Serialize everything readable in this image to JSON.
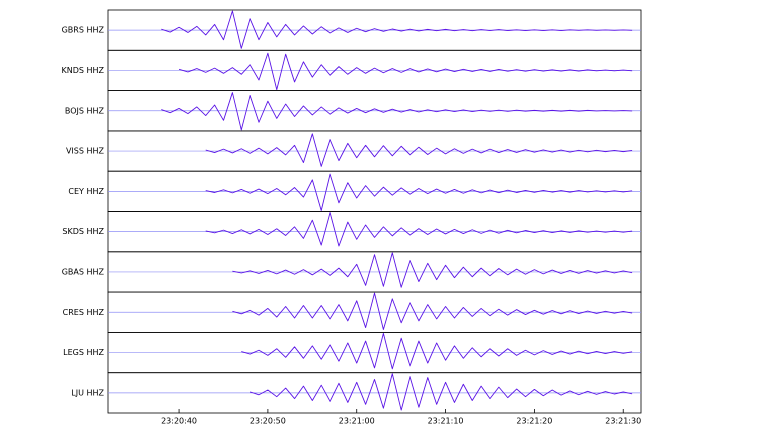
{
  "chart_data": {
    "type": "line",
    "x": [
      84032,
      84033,
      84034,
      84035,
      84036,
      84037,
      84038,
      84039,
      84040,
      84041,
      84042,
      84043,
      84044,
      84045,
      84046,
      84047,
      84048,
      84049,
      84050,
      84051,
      84052,
      84053,
      84054,
      84055,
      84056,
      84057,
      84058,
      84059,
      84060,
      84061,
      84062,
      84063,
      84064,
      84065,
      84066,
      84067,
      84068,
      84069,
      84070,
      84071,
      84072,
      84073,
      84074,
      84075,
      84076,
      84077,
      84078,
      84079,
      84080,
      84081,
      84082,
      84083,
      84084,
      84085,
      84086,
      84087,
      84088,
      84089,
      84090,
      84091
    ],
    "xlim": [
      84032,
      84092
    ],
    "xticks": [
      {
        "value": 84040,
        "label": "23:20:40"
      },
      {
        "value": 84050,
        "label": "23:20:50"
      },
      {
        "value": 84060,
        "label": "23:21:00"
      },
      {
        "value": 84070,
        "label": "23:21:10"
      },
      {
        "value": 84080,
        "label": "23:21:20"
      },
      {
        "value": 84090,
        "label": "23:21:30"
      }
    ],
    "ylim": [
      -1,
      1
    ],
    "series": [
      {
        "name": "GBRS HHZ",
        "color": "#5a14e6",
        "values": [
          null,
          null,
          null,
          null,
          null,
          null,
          0.05,
          -0.1,
          0.15,
          -0.12,
          0.2,
          -0.25,
          0.3,
          -0.5,
          1,
          -0.95,
          0.6,
          -0.5,
          0.4,
          -0.35,
          0.3,
          -0.25,
          0.22,
          -0.2,
          0.18,
          -0.15,
          0.12,
          -0.12,
          0.1,
          -0.08,
          0.08,
          -0.06,
          0.06,
          -0.05,
          0.05,
          -0.04,
          0.04,
          -0.03,
          0.04,
          -0.03,
          0.03,
          -0.03,
          0.03,
          -0.02,
          0.03,
          -0.02,
          0.02,
          -0.02,
          0.02,
          -0.02,
          0.02,
          -0.02,
          0.02,
          -0.01,
          0.02,
          -0.01,
          0.01,
          -0.01,
          0.01,
          -0.01
        ]
      },
      {
        "name": "KNDS HHZ",
        "color": "#5a14e6",
        "values": [
          null,
          null,
          null,
          null,
          null,
          null,
          null,
          null,
          0.06,
          -0.08,
          0.1,
          -0.1,
          0.12,
          -0.15,
          0.15,
          -0.2,
          0.3,
          -0.5,
          0.9,
          -1,
          0.85,
          -0.6,
          0.45,
          -0.35,
          0.3,
          -0.25,
          0.2,
          -0.2,
          0.15,
          -0.15,
          0.12,
          -0.12,
          0.1,
          -0.1,
          0.1,
          -0.08,
          0.08,
          -0.07,
          0.07,
          -0.06,
          0.06,
          -0.05,
          0.05,
          -0.05,
          0.05,
          -0.04,
          0.04,
          -0.04,
          0.04,
          -0.03,
          0.03,
          -0.03,
          0.03,
          -0.03,
          0.03,
          -0.02,
          0.02,
          -0.02,
          0.02,
          -0.02
        ]
      },
      {
        "name": "BOJS HHZ",
        "color": "#5a14e6",
        "values": [
          null,
          null,
          null,
          null,
          null,
          null,
          0.06,
          -0.1,
          0.12,
          -0.15,
          0.2,
          -0.25,
          0.3,
          -0.5,
          0.95,
          -1,
          0.8,
          -0.6,
          0.5,
          -0.4,
          0.35,
          -0.3,
          0.25,
          -0.22,
          0.2,
          -0.18,
          0.15,
          -0.12,
          0.12,
          -0.1,
          0.1,
          -0.08,
          0.08,
          -0.07,
          0.06,
          -0.06,
          0.05,
          -0.05,
          0.05,
          -0.04,
          0.04,
          -0.04,
          0.03,
          -0.03,
          0.03,
          -0.03,
          0.03,
          -0.02,
          0.02,
          -0.02,
          0.02,
          -0.02,
          0.02,
          -0.02,
          0.02,
          -0.01,
          0.01,
          -0.01,
          0.01,
          -0.01
        ]
      },
      {
        "name": "VISS HHZ",
        "color": "#5a14e6",
        "values": [
          null,
          null,
          null,
          null,
          null,
          null,
          null,
          null,
          null,
          null,
          null,
          0.05,
          -0.08,
          0.1,
          -0.1,
          0.12,
          -0.12,
          0.15,
          -0.15,
          0.18,
          -0.2,
          0.3,
          -0.6,
          0.9,
          -0.8,
          0.6,
          -0.5,
          0.4,
          -0.35,
          0.3,
          -0.3,
          0.28,
          -0.25,
          0.25,
          -0.2,
          0.2,
          -0.18,
          0.15,
          -0.15,
          0.12,
          -0.12,
          0.1,
          -0.1,
          0.1,
          -0.08,
          0.08,
          -0.07,
          0.07,
          -0.06,
          0.06,
          -0.05,
          0.05,
          -0.05,
          0.04,
          -0.04,
          0.04,
          -0.03,
          0.03,
          -0.03,
          0.03
        ]
      },
      {
        "name": "CEY HHZ",
        "color": "#5a14e6",
        "values": [
          null,
          null,
          null,
          null,
          null,
          null,
          null,
          null,
          null,
          null,
          null,
          0.04,
          -0.06,
          0.08,
          -0.08,
          0.1,
          -0.1,
          0.12,
          -0.12,
          0.15,
          -0.18,
          0.2,
          -0.3,
          0.6,
          -1,
          0.9,
          -0.6,
          0.45,
          -0.35,
          0.3,
          -0.25,
          0.22,
          -0.2,
          0.18,
          -0.15,
          0.15,
          -0.12,
          0.12,
          -0.1,
          0.1,
          -0.1,
          0.08,
          -0.08,
          0.07,
          -0.07,
          0.06,
          -0.06,
          0.05,
          -0.05,
          0.05,
          -0.04,
          0.04,
          -0.04,
          0.04,
          -0.03,
          0.03,
          -0.03,
          0.03,
          -0.03,
          0.03
        ]
      },
      {
        "name": "SKDS HHZ",
        "color": "#5a14e6",
        "values": [
          null,
          null,
          null,
          null,
          null,
          null,
          null,
          null,
          null,
          null,
          null,
          0.04,
          -0.06,
          0.08,
          -0.1,
          0.1,
          -0.12,
          0.12,
          -0.15,
          0.15,
          -0.2,
          0.25,
          -0.35,
          0.6,
          -0.7,
          1,
          -0.75,
          0.5,
          -0.4,
          0.35,
          -0.3,
          0.25,
          -0.22,
          0.2,
          -0.18,
          0.16,
          -0.15,
          0.14,
          -0.12,
          0.12,
          -0.1,
          0.1,
          -0.09,
          0.08,
          -0.08,
          0.07,
          -0.06,
          0.06,
          -0.05,
          0.05,
          -0.05,
          0.04,
          -0.04,
          0.04,
          -0.03,
          0.03,
          -0.03,
          0.03,
          -0.03,
          0.03
        ]
      },
      {
        "name": "GBAS HHZ",
        "color": "#5a14e6",
        "values": [
          null,
          null,
          null,
          null,
          null,
          null,
          null,
          null,
          null,
          null,
          null,
          null,
          null,
          null,
          0.04,
          -0.05,
          0.06,
          -0.08,
          0.08,
          -0.1,
          0.1,
          -0.12,
          0.12,
          -0.15,
          0.15,
          -0.18,
          0.2,
          -0.25,
          0.4,
          -0.7,
          0.9,
          -0.75,
          1,
          -0.8,
          0.6,
          -0.5,
          0.45,
          -0.4,
          0.35,
          -0.3,
          0.25,
          -0.25,
          0.2,
          -0.2,
          0.18,
          -0.15,
          0.15,
          -0.12,
          0.12,
          -0.1,
          0.1,
          -0.08,
          0.08,
          -0.07,
          0.07,
          -0.06,
          0.06,
          -0.05,
          0.05,
          -0.04
        ]
      },
      {
        "name": "CRES HHZ",
        "color": "#5a14e6",
        "values": [
          null,
          null,
          null,
          null,
          null,
          null,
          null,
          null,
          null,
          null,
          null,
          null,
          null,
          null,
          0.05,
          -0.08,
          0.1,
          -0.15,
          0.2,
          -0.25,
          0.3,
          -0.3,
          0.35,
          -0.3,
          0.35,
          -0.35,
          0.4,
          -0.45,
          0.6,
          -0.8,
          1,
          -0.9,
          0.7,
          -0.55,
          0.5,
          -0.45,
          0.4,
          -0.35,
          0.3,
          -0.3,
          0.25,
          -0.22,
          0.2,
          -0.18,
          0.16,
          -0.15,
          0.14,
          -0.12,
          0.1,
          -0.1,
          0.09,
          -0.08,
          0.08,
          -0.07,
          0.06,
          -0.06,
          0.05,
          -0.05,
          0.04,
          -0.04
        ]
      },
      {
        "name": "LEGS HHZ",
        "color": "#5a14e6",
        "values": [
          null,
          null,
          null,
          null,
          null,
          null,
          null,
          null,
          null,
          null,
          null,
          null,
          null,
          null,
          null,
          0.05,
          -0.08,
          0.12,
          -0.15,
          0.2,
          -0.25,
          0.3,
          -0.3,
          0.35,
          -0.35,
          0.4,
          -0.45,
          0.5,
          -0.55,
          0.6,
          -0.8,
          1,
          -0.85,
          0.75,
          -0.7,
          0.6,
          -0.55,
          0.5,
          -0.4,
          0.35,
          -0.3,
          0.25,
          -0.22,
          0.2,
          -0.18,
          0.2,
          -0.15,
          0.12,
          -0.12,
          0.1,
          -0.1,
          0.08,
          -0.08,
          0.07,
          -0.06,
          0.06,
          -0.05,
          0.05,
          -0.04,
          0.04
        ]
      },
      {
        "name": "LJU HHZ",
        "color": "#5a14e6",
        "values": [
          null,
          null,
          null,
          null,
          null,
          null,
          null,
          null,
          null,
          null,
          null,
          null,
          null,
          null,
          null,
          null,
          0.05,
          -0.1,
          0.15,
          -0.2,
          0.25,
          -0.3,
          0.35,
          -0.4,
          0.4,
          -0.45,
          0.5,
          -0.5,
          0.55,
          -0.6,
          0.7,
          -0.8,
          1,
          -0.9,
          0.85,
          -0.75,
          0.8,
          -0.6,
          0.55,
          -0.5,
          0.45,
          -0.4,
          0.35,
          -0.3,
          0.3,
          -0.25,
          0.2,
          -0.2,
          0.18,
          -0.15,
          0.15,
          -0.12,
          0.1,
          -0.1,
          0.08,
          -0.08,
          0.07,
          -0.06,
          0.05,
          -0.05
        ]
      }
    ]
  }
}
